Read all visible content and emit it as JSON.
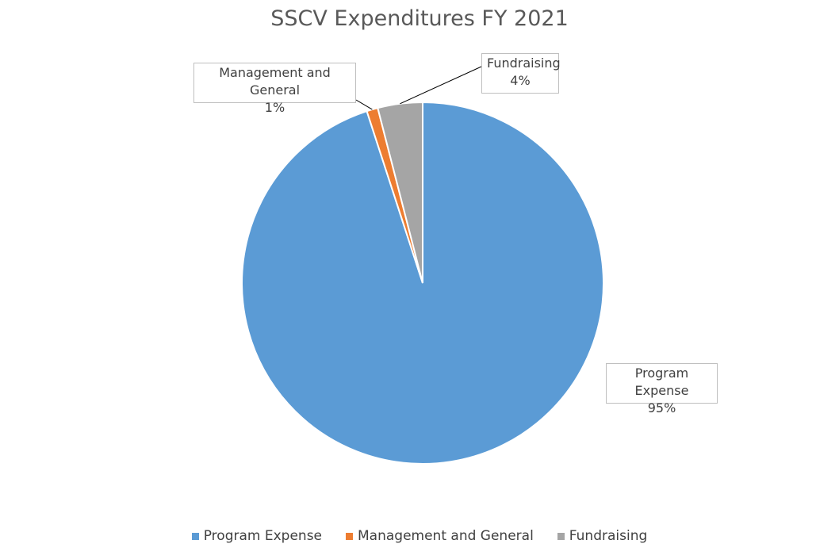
{
  "chart_data": {
    "type": "pie",
    "title": "SSCV Expenditures FY 2021",
    "categories": [
      "Program Expense",
      "Management and General",
      "Fundraising"
    ],
    "values": [
      95,
      1,
      4
    ],
    "value_labels": [
      "95%",
      "1%",
      "4%"
    ],
    "colors": [
      "#5b9bd5",
      "#ed7d31",
      "#a5a5a5"
    ],
    "legend_position": "bottom"
  }
}
